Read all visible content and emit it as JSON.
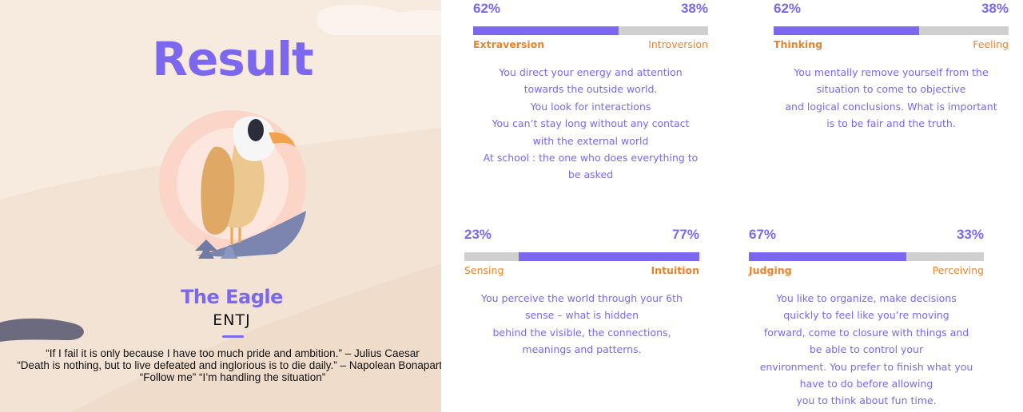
{
  "left": {
    "title": "Result",
    "animal": "The Eagle",
    "type_code": "ENTJ",
    "quotes": [
      "“If I fail it is only because I have too much pride and ambition.” – Julius Caesar",
      "“Death is nothing, but to live defeated and inglorious is to die daily.” – Napolean Bonaparte",
      "“Follow me” “I’m handling the situation”"
    ]
  },
  "traits": [
    {
      "left_pct": "62%",
      "right_pct": "38%",
      "left_label": "Extraversion",
      "right_label": "Introversion",
      "dominant": "left",
      "left_fraction": 0.62,
      "description": [
        "You direct your energy and attention",
        "towards the outside world.",
        "You look for interactions",
        "You can’t stay long without any contact",
        "with the external world",
        "At school : the one who does everything to",
        "be asked"
      ]
    },
    {
      "left_pct": "62%",
      "right_pct": "38%",
      "left_label": "Thinking",
      "right_label": "Feeling",
      "dominant": "left",
      "left_fraction": 0.62,
      "description": [
        "You mentally remove yourself from the",
        "situation to come to objective",
        "and logical conclusions. What is important",
        "is to be fair and the truth."
      ]
    },
    {
      "left_pct": "23%",
      "right_pct": "77%",
      "left_label": "Sensing",
      "right_label": "Intuition",
      "dominant": "right",
      "left_fraction": 0.23,
      "description": [
        "You perceive the world through your 6th",
        "sense – what is hidden",
        "behind the visible, the connections,",
        "meanings and patterns."
      ]
    },
    {
      "left_pct": "67%",
      "right_pct": "33%",
      "left_label": "Judging",
      "right_label": "Perceiving",
      "dominant": "left",
      "left_fraction": 0.67,
      "description": [
        "You like to organize, make decisions",
        "quickly to feel like you’re moving",
        "forward, come to closure with things and",
        "be able to control your",
        "environment. You prefer to finish what you",
        "have to do before allowing",
        "you to think about fun time."
      ]
    }
  ],
  "colors": {
    "accent": "#7b68ee",
    "label": "#e8852c",
    "bar_bg": "#cfcfcf",
    "panel_bg": "#f7ebe0"
  }
}
